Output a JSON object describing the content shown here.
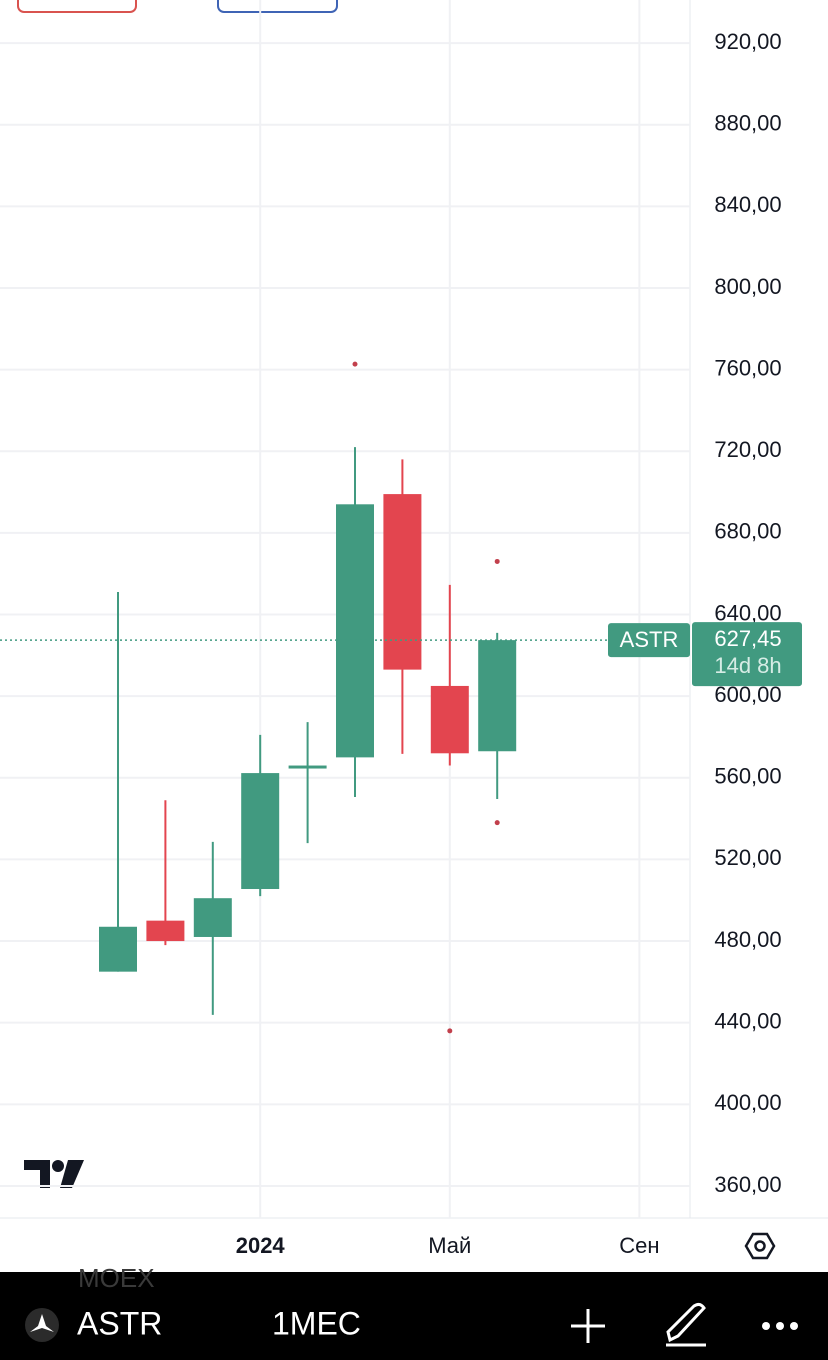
{
  "chart_data": {
    "type": "candlestick",
    "categories": [
      null,
      null,
      null,
      "2024",
      null,
      null,
      null,
      "Май",
      null,
      null,
      null,
      "Сен"
    ],
    "open": [
      465,
      490,
      482,
      505.5,
      565,
      570,
      699,
      605,
      573,
      null,
      null,
      null
    ],
    "high": [
      651,
      549,
      528.6,
      581,
      587.3,
      722,
      716,
      654.5,
      631,
      null,
      null,
      null
    ],
    "low": [
      465,
      478,
      443.8,
      502,
      528,
      550.6,
      571.7,
      566,
      549.6,
      null,
      null,
      null
    ],
    "close": [
      487,
      480,
      501,
      562.3,
      566,
      694,
      613,
      572,
      627.45,
      null,
      null,
      null
    ],
    "up_color": "#419a80",
    "down_color": "#e3454f",
    "markers": {
      "color": "#c2404c",
      "x": [
        5,
        8,
        8,
        7
      ],
      "y": [
        762.7,
        666,
        538,
        436
      ]
    },
    "ylim": [
      344.3,
      941.1
    ],
    "yticks": [
      {
        "value": 920,
        "label": "920,00"
      },
      {
        "value": 880,
        "label": "880,00"
      },
      {
        "value": 840,
        "label": "840,00"
      },
      {
        "value": 800,
        "label": "800,00"
      },
      {
        "value": 760,
        "label": "760,00"
      },
      {
        "value": 720,
        "label": "720,00"
      },
      {
        "value": 680,
        "label": "680,00"
      },
      {
        "value": 640,
        "label": "640,00"
      },
      {
        "value": 600,
        "label": "600,00"
      },
      {
        "value": 560,
        "label": "560,00"
      },
      {
        "value": 520,
        "label": "520,00"
      },
      {
        "value": 480,
        "label": "480,00"
      },
      {
        "value": 440,
        "label": "440,00"
      },
      {
        "value": 400,
        "label": "400,00"
      },
      {
        "value": 360,
        "label": "360,00"
      }
    ],
    "grid": true,
    "last_price": {
      "name": "ASTR",
      "value": 627.45,
      "label": "627,45",
      "countdown": "14d 8h"
    }
  },
  "toolbar": {
    "symbol": "ASTR",
    "interval": "1МЕС",
    "exchange": "MOEX"
  }
}
